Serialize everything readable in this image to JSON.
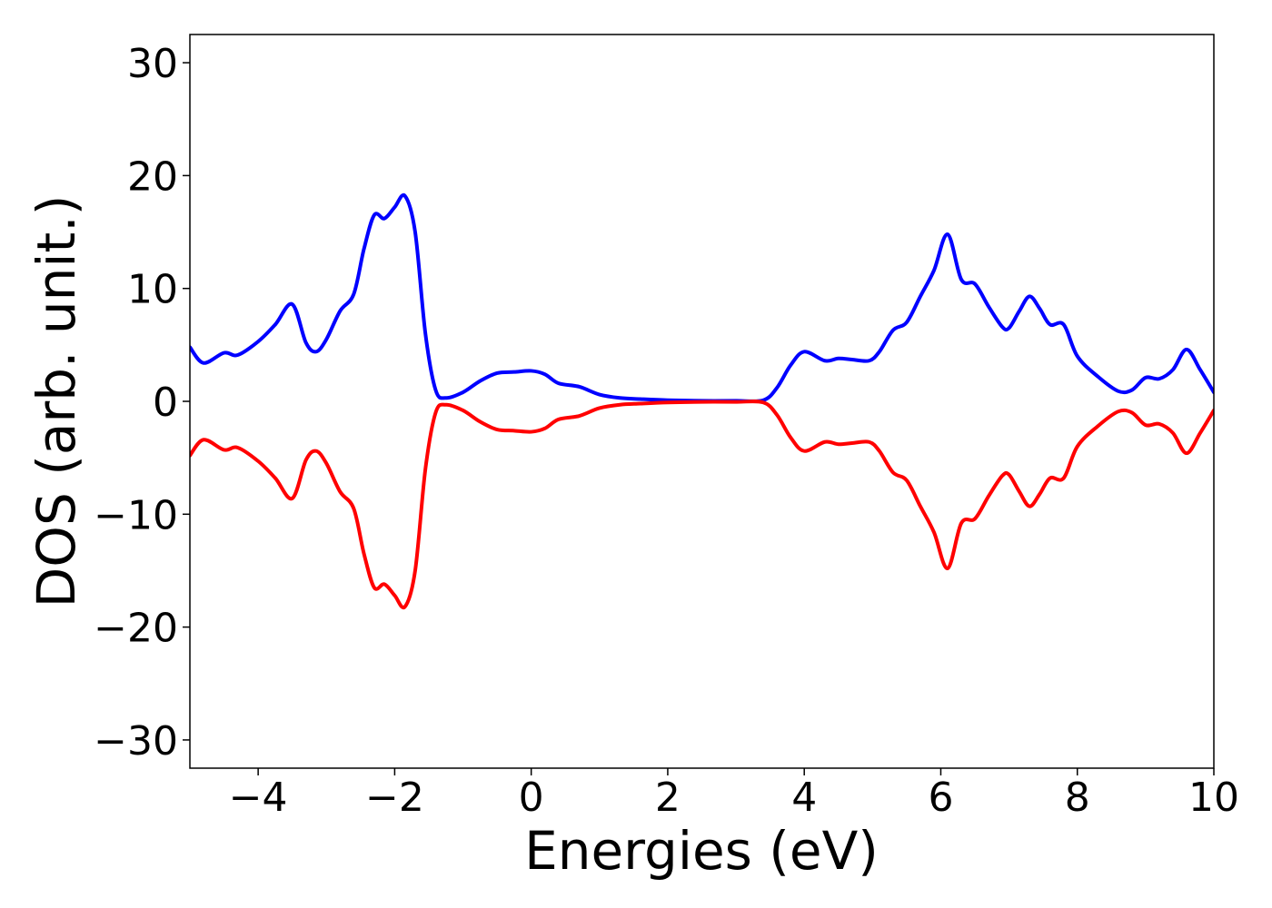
{
  "chart_data": {
    "type": "line",
    "title": "",
    "xlabel": "Energies (eV)",
    "ylabel": "DOS (arb. unit.)",
    "xlim": [
      -5,
      10
    ],
    "ylim": [
      -32.5,
      32.5
    ],
    "xticks": [
      -4,
      -2,
      0,
      2,
      4,
      6,
      8,
      10
    ],
    "yticks": [
      -30,
      -20,
      -10,
      0,
      10,
      20,
      30
    ],
    "xtick_labels": [
      "−4",
      "−2",
      "0",
      "2",
      "4",
      "6",
      "8",
      "10"
    ],
    "ytick_labels": [
      "−30",
      "−20",
      "−10",
      "0",
      "10",
      "20",
      "30"
    ],
    "grid": false,
    "legend": false,
    "series": [
      {
        "color": "#0000ff",
        "x": [
          -5.0,
          -4.8,
          -4.5,
          -4.3,
          -4.0,
          -3.75,
          -3.5,
          -3.3,
          -3.15,
          -3.0,
          -2.8,
          -2.6,
          -2.45,
          -2.3,
          -2.15,
          -2.0,
          -1.85,
          -1.7,
          -1.55,
          -1.4,
          -1.25,
          -1.0,
          -0.75,
          -0.5,
          -0.25,
          0.0,
          0.2,
          0.4,
          0.7,
          1.0,
          1.3,
          1.6,
          2.0,
          2.5,
          3.0,
          3.4,
          3.6,
          3.8,
          4.0,
          4.3,
          4.5,
          4.7,
          4.95,
          5.1,
          5.3,
          5.5,
          5.7,
          5.9,
          6.1,
          6.3,
          6.5,
          6.7,
          6.9,
          7.0,
          7.15,
          7.3,
          7.45,
          7.6,
          7.8,
          8.0,
          8.3,
          8.6,
          8.8,
          9.0,
          9.2,
          9.4,
          9.6,
          9.8,
          10.0
        ],
        "y": [
          4.8,
          3.4,
          4.3,
          4.1,
          5.3,
          6.8,
          8.6,
          5.2,
          4.4,
          5.5,
          8.0,
          9.5,
          13.5,
          16.5,
          16.2,
          17.2,
          18.2,
          15.0,
          6.0,
          1.0,
          0.3,
          0.8,
          1.8,
          2.5,
          2.6,
          2.7,
          2.4,
          1.6,
          1.3,
          0.6,
          0.3,
          0.2,
          0.1,
          0.05,
          0.05,
          0.1,
          1.2,
          3.2,
          4.4,
          3.6,
          3.8,
          3.7,
          3.6,
          4.4,
          6.3,
          7.0,
          9.3,
          11.6,
          14.8,
          10.8,
          10.4,
          8.4,
          6.6,
          6.5,
          8.0,
          9.3,
          8.2,
          6.8,
          6.8,
          4.0,
          2.2,
          0.9,
          1.0,
          2.1,
          2.0,
          2.8,
          4.6,
          2.8,
          0.8
        ]
      },
      {
        "color": "#ff0000",
        "x": [
          -5.0,
          -4.8,
          -4.5,
          -4.3,
          -4.0,
          -3.75,
          -3.5,
          -3.3,
          -3.15,
          -3.0,
          -2.8,
          -2.6,
          -2.45,
          -2.3,
          -2.15,
          -2.0,
          -1.85,
          -1.7,
          -1.55,
          -1.4,
          -1.25,
          -1.0,
          -0.75,
          -0.5,
          -0.25,
          0.0,
          0.2,
          0.4,
          0.7,
          1.0,
          1.3,
          1.6,
          2.0,
          2.5,
          3.0,
          3.4,
          3.6,
          3.8,
          4.0,
          4.3,
          4.5,
          4.7,
          4.95,
          5.1,
          5.3,
          5.5,
          5.7,
          5.9,
          6.1,
          6.3,
          6.5,
          6.7,
          6.9,
          7.0,
          7.15,
          7.3,
          7.45,
          7.6,
          7.8,
          8.0,
          8.3,
          8.6,
          8.8,
          9.0,
          9.2,
          9.4,
          9.6,
          9.8,
          10.0
        ],
        "y": [
          -4.8,
          -3.4,
          -4.3,
          -4.1,
          -5.3,
          -6.8,
          -8.6,
          -5.2,
          -4.4,
          -5.5,
          -8.0,
          -9.5,
          -13.5,
          -16.5,
          -16.2,
          -17.2,
          -18.2,
          -15.0,
          -6.0,
          -1.0,
          -0.3,
          -0.8,
          -1.8,
          -2.5,
          -2.6,
          -2.7,
          -2.4,
          -1.6,
          -1.3,
          -0.6,
          -0.3,
          -0.2,
          -0.1,
          -0.05,
          -0.05,
          -0.1,
          -1.2,
          -3.2,
          -4.4,
          -3.6,
          -3.8,
          -3.7,
          -3.6,
          -4.4,
          -6.3,
          -7.0,
          -9.3,
          -11.6,
          -14.8,
          -10.8,
          -10.4,
          -8.4,
          -6.6,
          -6.5,
          -8.0,
          -9.3,
          -8.2,
          -6.8,
          -6.8,
          -4.0,
          -2.2,
          -0.9,
          -1.0,
          -2.1,
          -2.0,
          -2.8,
          -4.6,
          -2.8,
          -0.8
        ]
      }
    ]
  }
}
